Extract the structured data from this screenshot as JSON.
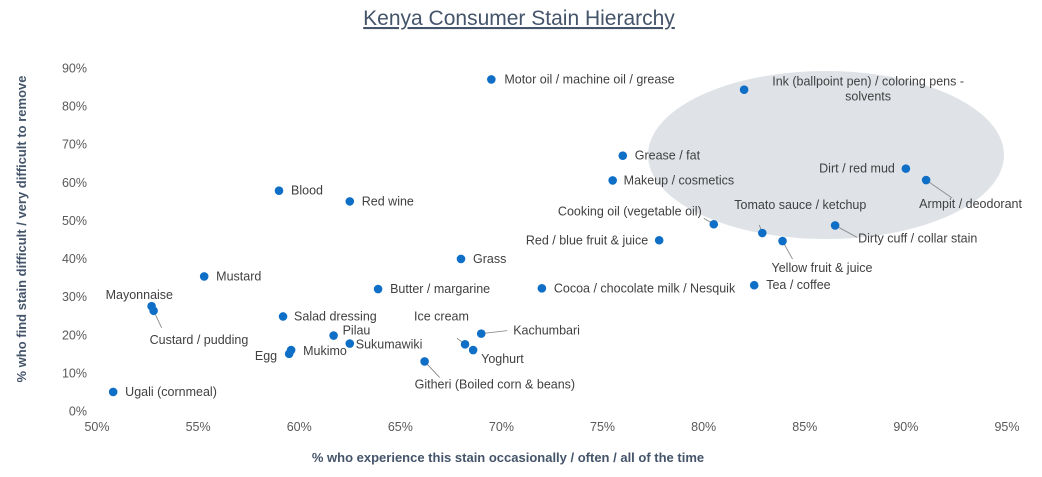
{
  "chart_data": {
    "type": "scatter",
    "title": "Kenya Consumer Stain Hierarchy",
    "xlabel": "% who experience this stain occasionally / often / all of the time",
    "ylabel": "% who find stain difficult / very difficult to remove",
    "xlim": [
      0.5,
      0.95
    ],
    "ylim": [
      0.0,
      0.9
    ],
    "x_ticks": [
      "50%",
      "55%",
      "60%",
      "65%",
      "70%",
      "75%",
      "80%",
      "85%",
      "90%",
      "95%"
    ],
    "y_ticks": [
      "0%",
      "10%",
      "20%",
      "30%",
      "40%",
      "50%",
      "60%",
      "70%",
      "80%",
      "90%"
    ],
    "grid": false,
    "highlight": "ellipse around top-right cluster",
    "colors": {
      "point": "#0f6fc6",
      "highlight": "#d9dee4",
      "title": "#44546a"
    },
    "points": [
      {
        "label": "Motor oil / machine oil / grease",
        "x": 0.695,
        "y": 0.87
      },
      {
        "label": "Ink (ballpoint pen) / coloring pens - solvents",
        "x": 0.82,
        "y": 0.843
      },
      {
        "label": "Grease / fat",
        "x": 0.76,
        "y": 0.67
      },
      {
        "label": "Dirt / red mud",
        "x": 0.9,
        "y": 0.636
      },
      {
        "label": "Makeup / cosmetics",
        "x": 0.755,
        "y": 0.605
      },
      {
        "label": "Armpit / deodorant",
        "x": 0.91,
        "y": 0.606
      },
      {
        "label": "Blood",
        "x": 0.59,
        "y": 0.578
      },
      {
        "label": "Red wine",
        "x": 0.625,
        "y": 0.55
      },
      {
        "label": "Cooking oil (vegetable oil)",
        "x": 0.805,
        "y": 0.49
      },
      {
        "label": "Dirty cuff / collar stain",
        "x": 0.865,
        "y": 0.487
      },
      {
        "label": "Tomato sauce / ketchup",
        "x": 0.829,
        "y": 0.467
      },
      {
        "label": "Yellow fruit & juice",
        "x": 0.839,
        "y": 0.446
      },
      {
        "label": "Red / blue fruit & juice",
        "x": 0.778,
        "y": 0.448
      },
      {
        "label": "Grass",
        "x": 0.68,
        "y": 0.399
      },
      {
        "label": "Mustard",
        "x": 0.553,
        "y": 0.353
      },
      {
        "label": "Tea / coffee",
        "x": 0.825,
        "y": 0.33
      },
      {
        "label": "Cocoa / chocolate milk / Nesquik",
        "x": 0.72,
        "y": 0.322
      },
      {
        "label": "Butter / margarine",
        "x": 0.639,
        "y": 0.32
      },
      {
        "label": "Mayonnaise",
        "x": 0.527,
        "y": 0.275
      },
      {
        "label": "Custard / pudding",
        "x": 0.528,
        "y": 0.263
      },
      {
        "label": "Salad dressing",
        "x": 0.592,
        "y": 0.248
      },
      {
        "label": "Kachumbari",
        "x": 0.69,
        "y": 0.203
      },
      {
        "label": "Pilau",
        "x": 0.617,
        "y": 0.198
      },
      {
        "label": "Sukumawiki",
        "x": 0.625,
        "y": 0.177
      },
      {
        "label": "Ice cream",
        "x": 0.682,
        "y": 0.175
      },
      {
        "label": "Yoghurt",
        "x": 0.686,
        "y": 0.16
      },
      {
        "label": "Mukimo",
        "x": 0.596,
        "y": 0.16
      },
      {
        "label": "Egg",
        "x": 0.595,
        "y": 0.15
      },
      {
        "label": "Githeri (Boiled corn & beans)",
        "x": 0.662,
        "y": 0.13
      },
      {
        "label": "Ugali (cornmeal)",
        "x": 0.508,
        "y": 0.05
      }
    ]
  }
}
